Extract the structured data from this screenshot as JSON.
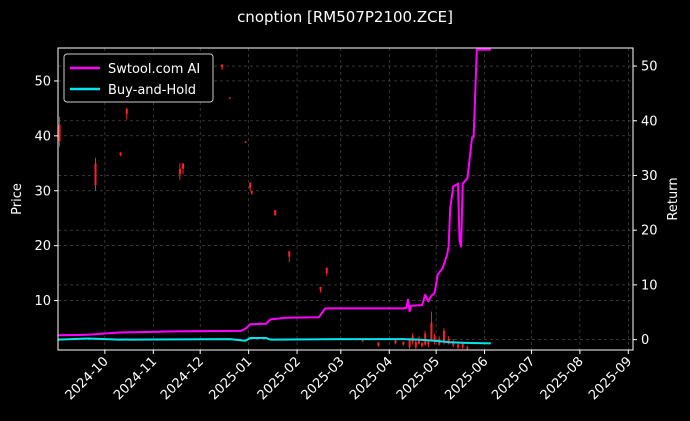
{
  "chart_data": {
    "type": "line",
    "title": "cnoption [RM507P2100.ZCE]",
    "ylabel_left": "Price",
    "ylabel_right": "Return",
    "ylim_left": [
      1,
      56
    ],
    "ylim_right": [
      -1.9,
      53.3
    ],
    "yticks_left": [
      10,
      20,
      30,
      40,
      50
    ],
    "yticks_right": [
      0,
      10,
      20,
      30,
      40,
      50
    ],
    "xlim": [
      "2024-09-01",
      "2025-09-04"
    ],
    "xticks": [
      "2024-10",
      "2024-11",
      "2024-12",
      "2025-01",
      "2025-02",
      "2025-03",
      "2025-04",
      "2025-05",
      "2025-06",
      "2025-07",
      "2025-08",
      "2025-09"
    ],
    "grid": true,
    "legend": "top-left",
    "colors": {
      "up": "#00c000",
      "down": "#ff2020",
      "ai": "#ff00ff",
      "hold": "#00e5ee",
      "grid": "#555555"
    },
    "candles": [
      {
        "date": "2024-09-02",
        "open": 42.0,
        "close": 39.0,
        "high": 43.5,
        "low": 38.0
      },
      {
        "date": "2024-09-25",
        "open": 35.0,
        "close": 31.0,
        "high": 36.0,
        "low": 30.0
      },
      {
        "date": "2024-10-11",
        "open": 37.0,
        "close": 36.5,
        "high": 37.0,
        "low": 36.3
      },
      {
        "date": "2024-10-15",
        "open": 45.0,
        "close": 44.0,
        "high": 45.0,
        "low": 43.0
      },
      {
        "date": "2024-11-18",
        "open": 34.0,
        "close": 33.0,
        "high": 35.0,
        "low": 32.0
      },
      {
        "date": "2024-11-20",
        "open": 35.0,
        "close": 34.0,
        "high": 35.0,
        "low": 33.0
      },
      {
        "date": "2024-12-15",
        "open": 53.0,
        "close": 52.5,
        "high": 53.0,
        "low": 52.0
      },
      {
        "date": "2024-12-20",
        "open": 47.0,
        "close": 46.8,
        "high": 47.0,
        "low": 46.7
      },
      {
        "date": "2024-12-30",
        "open": 39.0,
        "close": 38.8,
        "high": 39.0,
        "low": 38.7
      },
      {
        "date": "2025-01-02",
        "open": 31.5,
        "close": 30.5,
        "high": 31.5,
        "low": 30.0
      },
      {
        "date": "2025-01-03",
        "open": 30.0,
        "close": 29.5,
        "high": 30.0,
        "low": 29.3
      },
      {
        "date": "2025-01-18",
        "open": 26.5,
        "close": 25.5,
        "high": 26.5,
        "low": 25.5
      },
      {
        "date": "2025-01-27",
        "open": 19.0,
        "close": 18.0,
        "high": 19.0,
        "low": 17.0
      },
      {
        "date": "2025-02-16",
        "open": 12.5,
        "close": 12.0,
        "high": 12.5,
        "low": 11.5
      },
      {
        "date": "2025-02-20",
        "open": 16.0,
        "close": 15.0,
        "high": 16.0,
        "low": 14.5
      },
      {
        "date": "2025-03-15",
        "open": 2.8,
        "close": 2.6,
        "high": 2.8,
        "low": 2.5
      },
      {
        "date": "2025-03-25",
        "open": 2.4,
        "close": 1.8,
        "high": 2.4,
        "low": 1.6
      },
      {
        "date": "2025-04-05",
        "open": 2.8,
        "close": 2.2,
        "high": 2.8,
        "low": 2.0
      },
      {
        "date": "2025-04-10",
        "open": 2.5,
        "close": 2.0,
        "high": 2.5,
        "low": 1.8
      },
      {
        "date": "2025-04-14",
        "open": 2.8,
        "close": 1.5,
        "high": 3.0,
        "low": 1.2
      },
      {
        "date": "2025-04-16",
        "open": 3.5,
        "close": 2.5,
        "high": 4.0,
        "low": 2.0
      },
      {
        "date": "2025-04-18",
        "open": 2.5,
        "close": 1.5,
        "high": 3.0,
        "low": 1.2
      },
      {
        "date": "2025-04-20",
        "open": 3.0,
        "close": 2.2,
        "high": 3.5,
        "low": 2.0
      },
      {
        "date": "2025-04-22",
        "open": 2.2,
        "close": 1.8,
        "high": 2.5,
        "low": 1.5
      },
      {
        "date": "2025-04-24",
        "open": 4.0,
        "close": 2.0,
        "high": 4.5,
        "low": 1.8
      },
      {
        "date": "2025-04-26",
        "open": 2.5,
        "close": 2.0,
        "high": 2.8,
        "low": 1.5
      },
      {
        "date": "2025-04-28",
        "open": 6.0,
        "close": 3.0,
        "high": 8.0,
        "low": 2.5
      },
      {
        "date": "2025-04-30",
        "open": 3.5,
        "close": 2.5,
        "high": 4.0,
        "low": 2.0
      },
      {
        "date": "2025-05-03",
        "open": 3.0,
        "close": 2.0,
        "high": 3.5,
        "low": 1.8
      },
      {
        "date": "2025-05-06",
        "open": 4.5,
        "close": 2.5,
        "high": 5.0,
        "low": 2.0
      },
      {
        "date": "2025-05-09",
        "open": 3.0,
        "close": 2.2,
        "high": 3.5,
        "low": 2.0
      },
      {
        "date": "2025-05-12",
        "open": 2.5,
        "close": 1.8,
        "high": 3.0,
        "low": 1.5
      },
      {
        "date": "2025-05-15",
        "open": 2.0,
        "close": 1.5,
        "high": 2.5,
        "low": 1.2
      },
      {
        "date": "2025-05-18",
        "open": 2.2,
        "close": 1.5,
        "high": 2.5,
        "low": 1.2
      },
      {
        "date": "2025-05-21",
        "open": 1.5,
        "close": 1.2,
        "high": 1.8,
        "low": 1.0
      }
    ],
    "series": [
      {
        "name": "Swtool.com AI",
        "axis": "right",
        "points": [
          [
            "2024-09-01",
            0.8
          ],
          [
            "2024-09-20",
            0.9
          ],
          [
            "2024-10-10",
            1.3
          ],
          [
            "2024-11-15",
            1.5
          ],
          [
            "2024-12-27",
            1.6
          ],
          [
            "2024-12-30",
            2.0
          ],
          [
            "2025-01-02",
            2.8
          ],
          [
            "2025-01-12",
            2.9
          ],
          [
            "2025-01-15",
            3.7
          ],
          [
            "2025-01-25",
            4.0
          ],
          [
            "2025-02-15",
            4.1
          ],
          [
            "2025-02-19",
            5.7
          ],
          [
            "2025-04-10",
            5.7
          ],
          [
            "2025-04-12",
            5.8
          ],
          [
            "2025-04-13",
            7.3
          ],
          [
            "2025-04-14",
            5.2
          ],
          [
            "2025-04-15",
            6.2
          ],
          [
            "2025-04-22",
            6.3
          ],
          [
            "2025-04-24",
            8.2
          ],
          [
            "2025-04-26",
            7.0
          ],
          [
            "2025-04-28",
            8.0
          ],
          [
            "2025-04-30",
            8.5
          ],
          [
            "2025-05-02",
            11.9
          ],
          [
            "2025-05-05",
            13.0
          ],
          [
            "2025-05-08",
            15.5
          ],
          [
            "2025-05-09",
            17.0
          ],
          [
            "2025-05-10",
            24.0
          ],
          [
            "2025-05-12",
            28.0
          ],
          [
            "2025-05-15",
            28.5
          ],
          [
            "2025-05-16",
            18.0
          ],
          [
            "2025-05-17",
            17.0
          ],
          [
            "2025-05-18",
            28.5
          ],
          [
            "2025-05-21",
            29.5
          ],
          [
            "2025-05-24",
            37.0
          ],
          [
            "2025-05-25",
            37.0
          ],
          [
            "2025-05-27",
            53.0
          ],
          [
            "2025-06-05",
            53.0
          ]
        ]
      },
      {
        "name": "Buy-and-Hold",
        "axis": "right",
        "points": [
          [
            "2024-09-01",
            0.0
          ],
          [
            "2024-09-20",
            0.2
          ],
          [
            "2024-10-10",
            0.0
          ],
          [
            "2024-12-20",
            0.1
          ],
          [
            "2024-12-30",
            -0.2
          ],
          [
            "2025-01-02",
            0.3
          ],
          [
            "2025-01-12",
            0.3
          ],
          [
            "2025-01-15",
            0.0
          ],
          [
            "2025-03-01",
            0.1
          ],
          [
            "2025-04-10",
            0.1
          ],
          [
            "2025-04-20",
            0.0
          ],
          [
            "2025-04-30",
            -0.2
          ],
          [
            "2025-05-10",
            -0.5
          ],
          [
            "2025-05-20",
            -0.6
          ],
          [
            "2025-06-05",
            -0.7
          ]
        ]
      }
    ]
  }
}
